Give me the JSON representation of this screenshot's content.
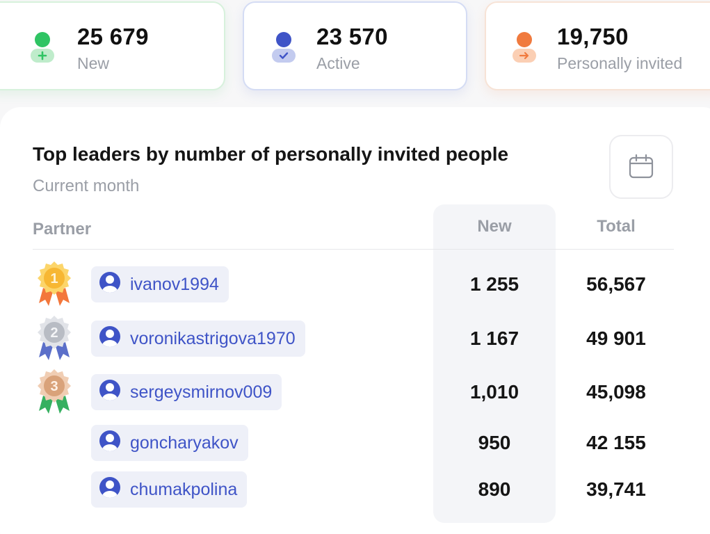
{
  "stats": [
    {
      "value": "25 679",
      "label": "New",
      "icon": "user-plus-icon",
      "color": "#2fc463"
    },
    {
      "value": "23 570",
      "label": "Active",
      "icon": "user-check-icon",
      "color": "#3f54c7"
    },
    {
      "value": "19,750",
      "label": "Personally invited",
      "icon": "user-arrow-icon",
      "color": "#f07a3e"
    }
  ],
  "leaders": {
    "title": "Top leaders by number of personally invited people",
    "subtitle": "Current month",
    "calendar_icon": "calendar-icon",
    "columns": {
      "partner": "Partner",
      "new": "New",
      "total": "Total"
    },
    "rows": [
      {
        "rank": "1",
        "name": "ivanov1994",
        "new": "1 255",
        "total": "56,567"
      },
      {
        "rank": "2",
        "name": "voronikastrigova1970",
        "new": "1 167",
        "total": "49 901"
      },
      {
        "rank": "3",
        "name": "sergeysmirnov009",
        "new": "1,010",
        "total": "45,098"
      },
      {
        "rank": "",
        "name": "goncharyakov",
        "new": "950",
        "total": "42 155"
      },
      {
        "rank": "",
        "name": "chumakpolina",
        "new": "890",
        "total": "39,741"
      }
    ],
    "medal_colors": {
      "gold": "#f7b733",
      "silver": "#b8bcc4",
      "bronze": "#d9a27a"
    }
  }
}
